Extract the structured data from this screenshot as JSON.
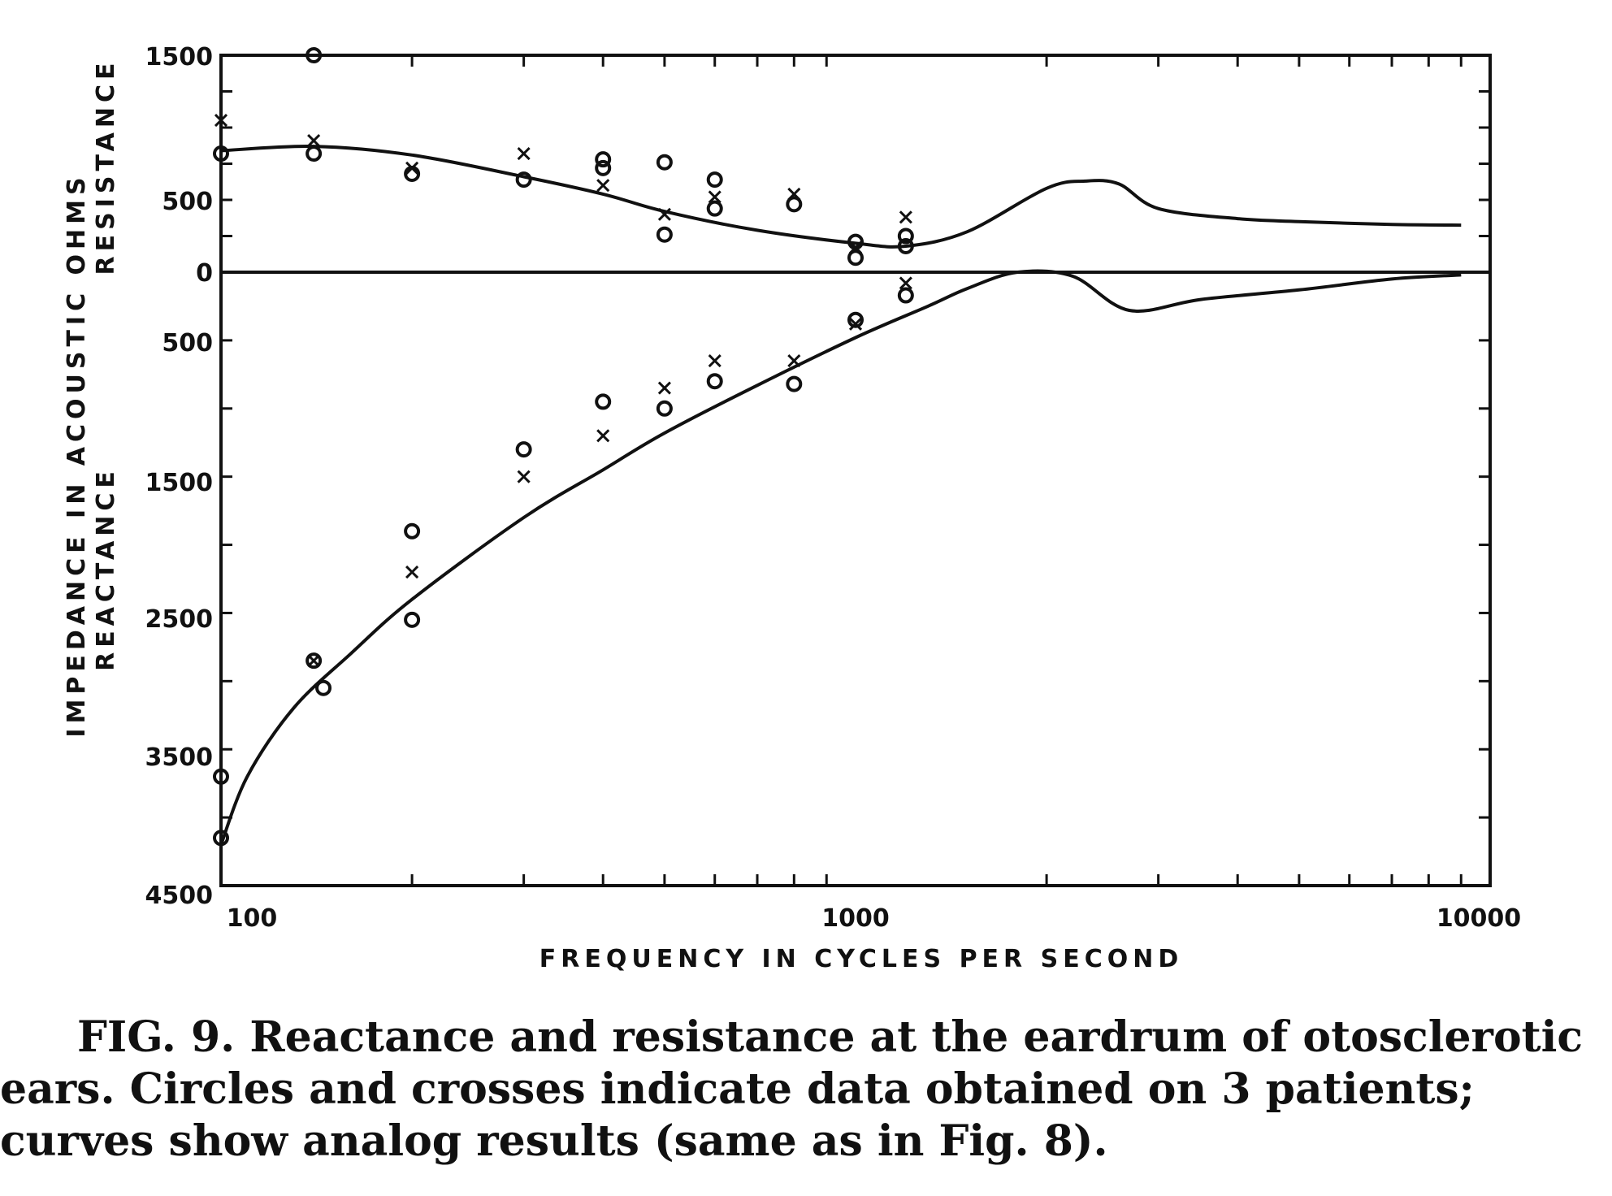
{
  "chart_data": {
    "type": "scatter",
    "x_scale": "log",
    "xlim": [
      100,
      10000
    ],
    "x_ticks": [
      100,
      1000,
      10000
    ],
    "x_tick_labels": [
      "100",
      "1000",
      "10000"
    ],
    "xlabel": "FREQUENCY IN CYCLES PER SECOND",
    "ylabel_line1": "IMPEDANCE IN ACOUSTIC OHMS",
    "ylabel_upper": "RESISTANCE",
    "ylabel_lower": "REACTANCE",
    "y_upper_ticks": [
      1500,
      500,
      0
    ],
    "y_upper_tick_labels": [
      "1500",
      "500",
      "0"
    ],
    "y_lower_ticks": [
      500,
      1500,
      2500,
      3500,
      4500
    ],
    "y_lower_tick_labels": [
      "500",
      "1500",
      "2500",
      "3500",
      "4500"
    ],
    "grid": false,
    "series": [
      {
        "kind": "curve",
        "panel": "resistance",
        "points": [
          [
            100,
            840
          ],
          [
            140,
            870
          ],
          [
            200,
            810
          ],
          [
            300,
            660
          ],
          [
            400,
            540
          ],
          [
            500,
            420
          ],
          [
            700,
            290
          ],
          [
            1000,
            200
          ],
          [
            1200,
            180
          ],
          [
            1500,
            280
          ],
          [
            2000,
            580
          ],
          [
            2300,
            630
          ],
          [
            2600,
            610
          ],
          [
            3000,
            440
          ],
          [
            4000,
            370
          ],
          [
            5000,
            350
          ],
          [
            7000,
            330
          ],
          [
            9000,
            325
          ]
        ]
      },
      {
        "kind": "curve",
        "panel": "reactance",
        "points": [
          [
            100,
            4200
          ],
          [
            110,
            3700
          ],
          [
            130,
            3200
          ],
          [
            160,
            2800
          ],
          [
            200,
            2400
          ],
          [
            300,
            1800
          ],
          [
            400,
            1450
          ],
          [
            500,
            1180
          ],
          [
            700,
            830
          ],
          [
            1000,
            480
          ],
          [
            1300,
            250
          ],
          [
            1500,
            120
          ],
          [
            1800,
            0
          ],
          [
            2200,
            30
          ],
          [
            2700,
            280
          ],
          [
            3500,
            200
          ],
          [
            5000,
            130
          ],
          [
            7000,
            50
          ],
          [
            9000,
            20
          ]
        ]
      },
      {
        "kind": "circles",
        "panel": "resistance",
        "points": [
          [
            100,
            820
          ],
          [
            140,
            1500
          ],
          [
            140,
            820
          ],
          [
            200,
            680
          ],
          [
            300,
            640
          ],
          [
            400,
            720
          ],
          [
            400,
            780
          ],
          [
            500,
            760
          ],
          [
            500,
            260
          ],
          [
            600,
            640
          ],
          [
            600,
            440
          ],
          [
            800,
            470
          ],
          [
            1000,
            100
          ],
          [
            1000,
            210
          ],
          [
            1200,
            250
          ],
          [
            1200,
            180
          ]
        ]
      },
      {
        "kind": "crosses",
        "panel": "resistance",
        "points": [
          [
            100,
            1050
          ],
          [
            140,
            910
          ],
          [
            200,
            720
          ],
          [
            300,
            820
          ],
          [
            400,
            600
          ],
          [
            500,
            400
          ],
          [
            600,
            520
          ],
          [
            800,
            540
          ],
          [
            1000,
            170
          ],
          [
            1200,
            380
          ]
        ]
      },
      {
        "kind": "circles",
        "panel": "reactance",
        "points": [
          [
            100,
            3700
          ],
          [
            100,
            4150
          ],
          [
            140,
            2850
          ],
          [
            145,
            3050
          ],
          [
            200,
            1900
          ],
          [
            200,
            2550
          ],
          [
            300,
            1300
          ],
          [
            400,
            950
          ],
          [
            500,
            1000
          ],
          [
            600,
            800
          ],
          [
            800,
            820
          ],
          [
            1000,
            350
          ],
          [
            1200,
            170
          ]
        ]
      },
      {
        "kind": "crosses",
        "panel": "reactance",
        "points": [
          [
            140,
            2850
          ],
          [
            200,
            2200
          ],
          [
            300,
            1500
          ],
          [
            400,
            1200
          ],
          [
            500,
            850
          ],
          [
            600,
            650
          ],
          [
            800,
            650
          ],
          [
            1000,
            380
          ],
          [
            1200,
            80
          ]
        ]
      }
    ]
  },
  "caption": {
    "line1": "FIG. 9. Reactance and resistance at the eardrum of otosclerotic",
    "line2": "ears. Circles and crosses indicate data obtained on 3 patients;",
    "line3": "curves show analog results (same as in Fig. 8)."
  }
}
